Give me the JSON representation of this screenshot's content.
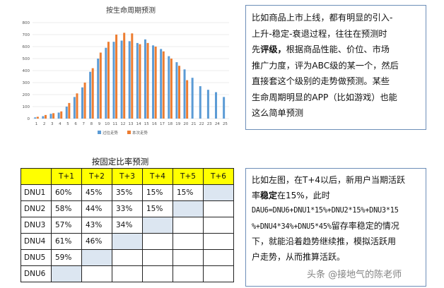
{
  "chart_data": {
    "type": "bar",
    "title": "按生命周期预测",
    "categories": [
      "1",
      "2",
      "3",
      "4",
      "5",
      "6",
      "7",
      "8",
      "9",
      "10",
      "11",
      "12",
      "13",
      "14",
      "15",
      "16",
      "17",
      "18",
      "19",
      "20",
      "21",
      "22",
      "23",
      "24",
      "25"
    ],
    "yticks": [
      "0",
      "100",
      "200",
      "300",
      "400",
      "500",
      "600",
      "700",
      "800"
    ],
    "ylim": [
      0,
      800
    ],
    "grid": true,
    "legend_position": "bottom",
    "series": [
      {
        "name": "过往走势",
        "color": "#5b9bd5",
        "values": [
          10,
          20,
          40,
          50,
          100,
          180,
          260,
          390,
          500,
          590,
          640,
          650,
          645,
          630,
          660,
          610,
          580,
          520,
          470,
          410,
          340,
          270,
          240,
          220,
          180
        ]
      },
      {
        "name": "本次走势",
        "color": "#ed7d31",
        "values": [
          15,
          30,
          45,
          60,
          130,
          210,
          300,
          420,
          550,
          640,
          700,
          715,
          710,
          620,
          630,
          600,
          560,
          500,
          440,
          320,
          null,
          null,
          null,
          null,
          null
        ]
      }
    ]
  },
  "note_top": {
    "line1": "比如商品上市上线，都有明显的引入-",
    "line2": "上升-稳定-衰退过程，往往在预测时",
    "line3_a": "先",
    "line3_b": "评级，",
    "line3_c": "根据商品性能、价位、市场",
    "line4": "推广力度，评为ABC级的某一个，然后",
    "line5": "直接套这个级别的走势做预测。某些",
    "line6": "生命周期明显的APP（比如游戏）也能",
    "line7": "这么简单预测"
  },
  "table": {
    "title": "按固定比率预测",
    "headers": [
      "T+1",
      "T+2",
      "T+3",
      "T+4",
      "T+5",
      "T+6"
    ],
    "rows": [
      {
        "label": "DNU1",
        "cells": [
          "60%",
          "45%",
          "35%",
          "15%",
          "15%",
          ""
        ]
      },
      {
        "label": "DNU2",
        "cells": [
          "58%",
          "44%",
          "33%",
          "15%",
          "",
          ""
        ]
      },
      {
        "label": "DNU3",
        "cells": [
          "57%",
          "43%",
          "34%",
          "",
          "",
          ""
        ]
      },
      {
        "label": "DNU4",
        "cells": [
          "61%",
          "46%",
          "",
          "",
          "",
          ""
        ]
      },
      {
        "label": "DNU5",
        "cells": [
          "59%",
          "",
          "",
          "",
          "",
          ""
        ]
      },
      {
        "label": "DNU6",
        "cells": [
          "",
          "",
          "",
          "",
          "",
          ""
        ]
      }
    ]
  },
  "note_bottom": {
    "line1": "比如左图，在T+4以后，新用户当期活跃",
    "line2_a": "率",
    "line2_b": "稳定",
    "line2_c": "在15%，此时",
    "line3": "DAU6=DNU6+DNU1*15%+DNU2*15%+DNU3*15",
    "line4_a": "%+DNU4*34%+DNU5*45%",
    "line4_b": "留存率稳定的情况",
    "line5": "下，就能沿着趋势继续推，模拟活跃用",
    "line6": "户走势，从而推算活跃。"
  },
  "watermark": "头条 @接地气的陈老师"
}
